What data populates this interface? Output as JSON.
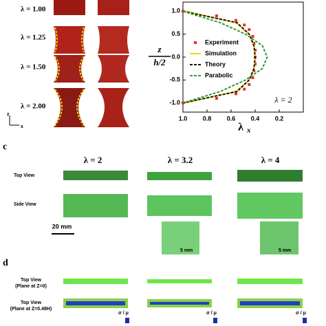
{
  "chart_data": {
    "type": "line",
    "xlabel": {
      "symbol": "λ",
      "subscript": "x"
    },
    "ylabel": {
      "numerator": "z",
      "denominator": "h/2"
    },
    "annotation": "λ = 2",
    "xlim": [
      1,
      0
    ],
    "xticks": [
      {
        "value": 1,
        "label": "1.0"
      },
      0.8,
      0.6,
      0.4,
      0.2
    ],
    "ylim": [
      -1.2,
      1.2
    ],
    "yticks": [
      {
        "value": 1,
        "label": "1.0"
      },
      0.5,
      {
        "value": 0,
        "label": "0.0"
      },
      -0.5,
      {
        "value": -1,
        "label": "-1.0"
      }
    ],
    "legend": "center-left",
    "series": [
      {
        "name": "Experiment",
        "color": "#e8302a",
        "style": "markers",
        "x": [
          1.0,
          0.72,
          0.56,
          0.49,
          0.45,
          0.42,
          0.41,
          0.4,
          0.4,
          0.4,
          0.41,
          0.42,
          0.45,
          0.49,
          0.56,
          0.72,
          1.0
        ],
        "values": [
          1.0,
          0.9,
          0.8,
          0.7,
          0.6,
          0.45,
          0.3,
          0.15,
          0,
          -0.15,
          -0.3,
          -0.45,
          -0.6,
          -0.7,
          -0.8,
          -0.9,
          -1.0
        ]
      },
      {
        "name": "Simulation",
        "color": "#f2d600",
        "style": "solid",
        "x": [
          0.98,
          0.56,
          0.45,
          0.41,
          0.4,
          0.41,
          0.45,
          0.56,
          0.98
        ],
        "values": [
          1,
          0.75,
          0.5,
          0.25,
          0,
          -0.25,
          -0.5,
          -0.75,
          -1
        ]
      },
      {
        "name": "Theory",
        "color": "#111111",
        "style": "dashed",
        "x": [
          1.0,
          0.55,
          0.45,
          0.41,
          0.4,
          0.41,
          0.45,
          0.55,
          1.0
        ],
        "values": [
          1,
          0.75,
          0.5,
          0.25,
          0,
          -0.25,
          -0.5,
          -0.75,
          -1
        ]
      },
      {
        "name": "Parabolic",
        "color": "#2e9a3a",
        "style": "dashed",
        "x": [
          1.0,
          0.69,
          0.48,
          0.34,
          0.3,
          0.34,
          0.48,
          0.69,
          1.0
        ],
        "values": [
          1,
          0.75,
          0.5,
          0.25,
          0,
          -0.25,
          -0.5,
          -0.75,
          -1
        ]
      }
    ]
  },
  "panel_a": {
    "labels": [
      "λ = 1.00",
      "λ = 1.25",
      "λ = 1.50",
      "λ = 2.00"
    ],
    "axis_z": "z",
    "axis_x": "x"
  },
  "panel_c": {
    "label": "c",
    "stretches": [
      "λ = 2",
      "λ = 3.2",
      "λ = 4"
    ],
    "rows": [
      "Top View",
      "Side View"
    ],
    "scale": "20 mm",
    "inset_scale": "5 mm"
  },
  "panel_d": {
    "label": "d",
    "rows": [
      "Top View",
      "(Plane at Z=0)",
      "Top View",
      "(Plane at Z=0.48H)"
    ],
    "colorbar": "σ / μ"
  }
}
